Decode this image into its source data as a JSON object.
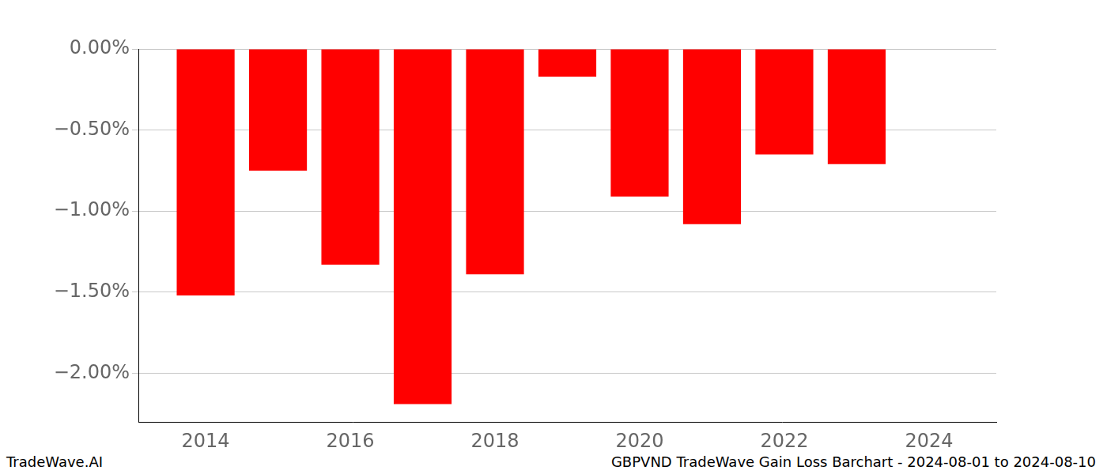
{
  "chart_data": {
    "type": "bar",
    "title": "GBPVND TradeWave Gain Loss Barchart - 2024-08-01 to 2024-08-10",
    "annotations": [
      "TradeWave.AI"
    ],
    "x": [
      2014,
      2015,
      2016,
      2017,
      2018,
      2019,
      2020,
      2021,
      2022,
      2023
    ],
    "values": [
      -1.52,
      -0.75,
      -1.33,
      -2.19,
      -1.39,
      -0.17,
      -0.91,
      -1.08,
      -0.65,
      -0.71
    ],
    "color": "#ff0000",
    "xlim": [
      2013.07,
      2024.93
    ],
    "xticks": [
      2014,
      2016,
      2018,
      2020,
      2022,
      2024
    ],
    "ylim": [
      -2.3,
      0
    ],
    "yticks": [
      {
        "value": 0,
        "label": "0.00%"
      },
      {
        "value": -0.5,
        "label": "−0.50%"
      },
      {
        "value": -1,
        "label": "−1.00%"
      },
      {
        "value": -1.5,
        "label": "−1.50%"
      },
      {
        "value": -2,
        "label": "−2.00%"
      }
    ],
    "grid": true
  }
}
